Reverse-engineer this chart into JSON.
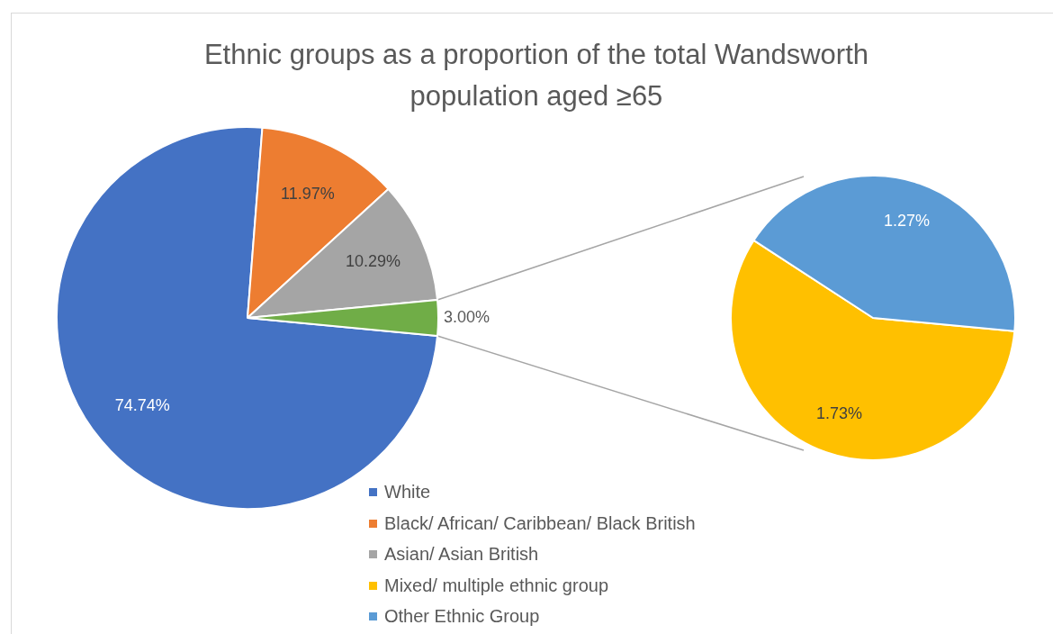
{
  "chart_data": [
    {
      "type": "pie",
      "title": "Ethnic groups as a proportion of the total Wandsworth population aged ≥65",
      "categories": [
        "White",
        "Black/ African/ Caribbean/ Black British",
        "Asian/ Asian British",
        null
      ],
      "values": [
        74.74,
        11.97,
        10.29,
        3.0
      ],
      "colors": [
        "#4472c4",
        "#ed7d31",
        "#a5a5a5",
        "#70ad47"
      ],
      "value_labels": [
        "74.74%",
        "11.97%",
        "10.29%",
        "3.00%"
      ],
      "legend": "bottom"
    },
    {
      "type": "pie",
      "categories": [
        "Mixed/ multiple ethnic group",
        "Other Ethnic Group"
      ],
      "values": [
        1.73,
        1.27
      ],
      "colors": [
        "#ffc000",
        "#5b9bd5"
      ],
      "value_labels": [
        "1.73%",
        "1.27%"
      ],
      "legend": "bottom"
    }
  ]
}
